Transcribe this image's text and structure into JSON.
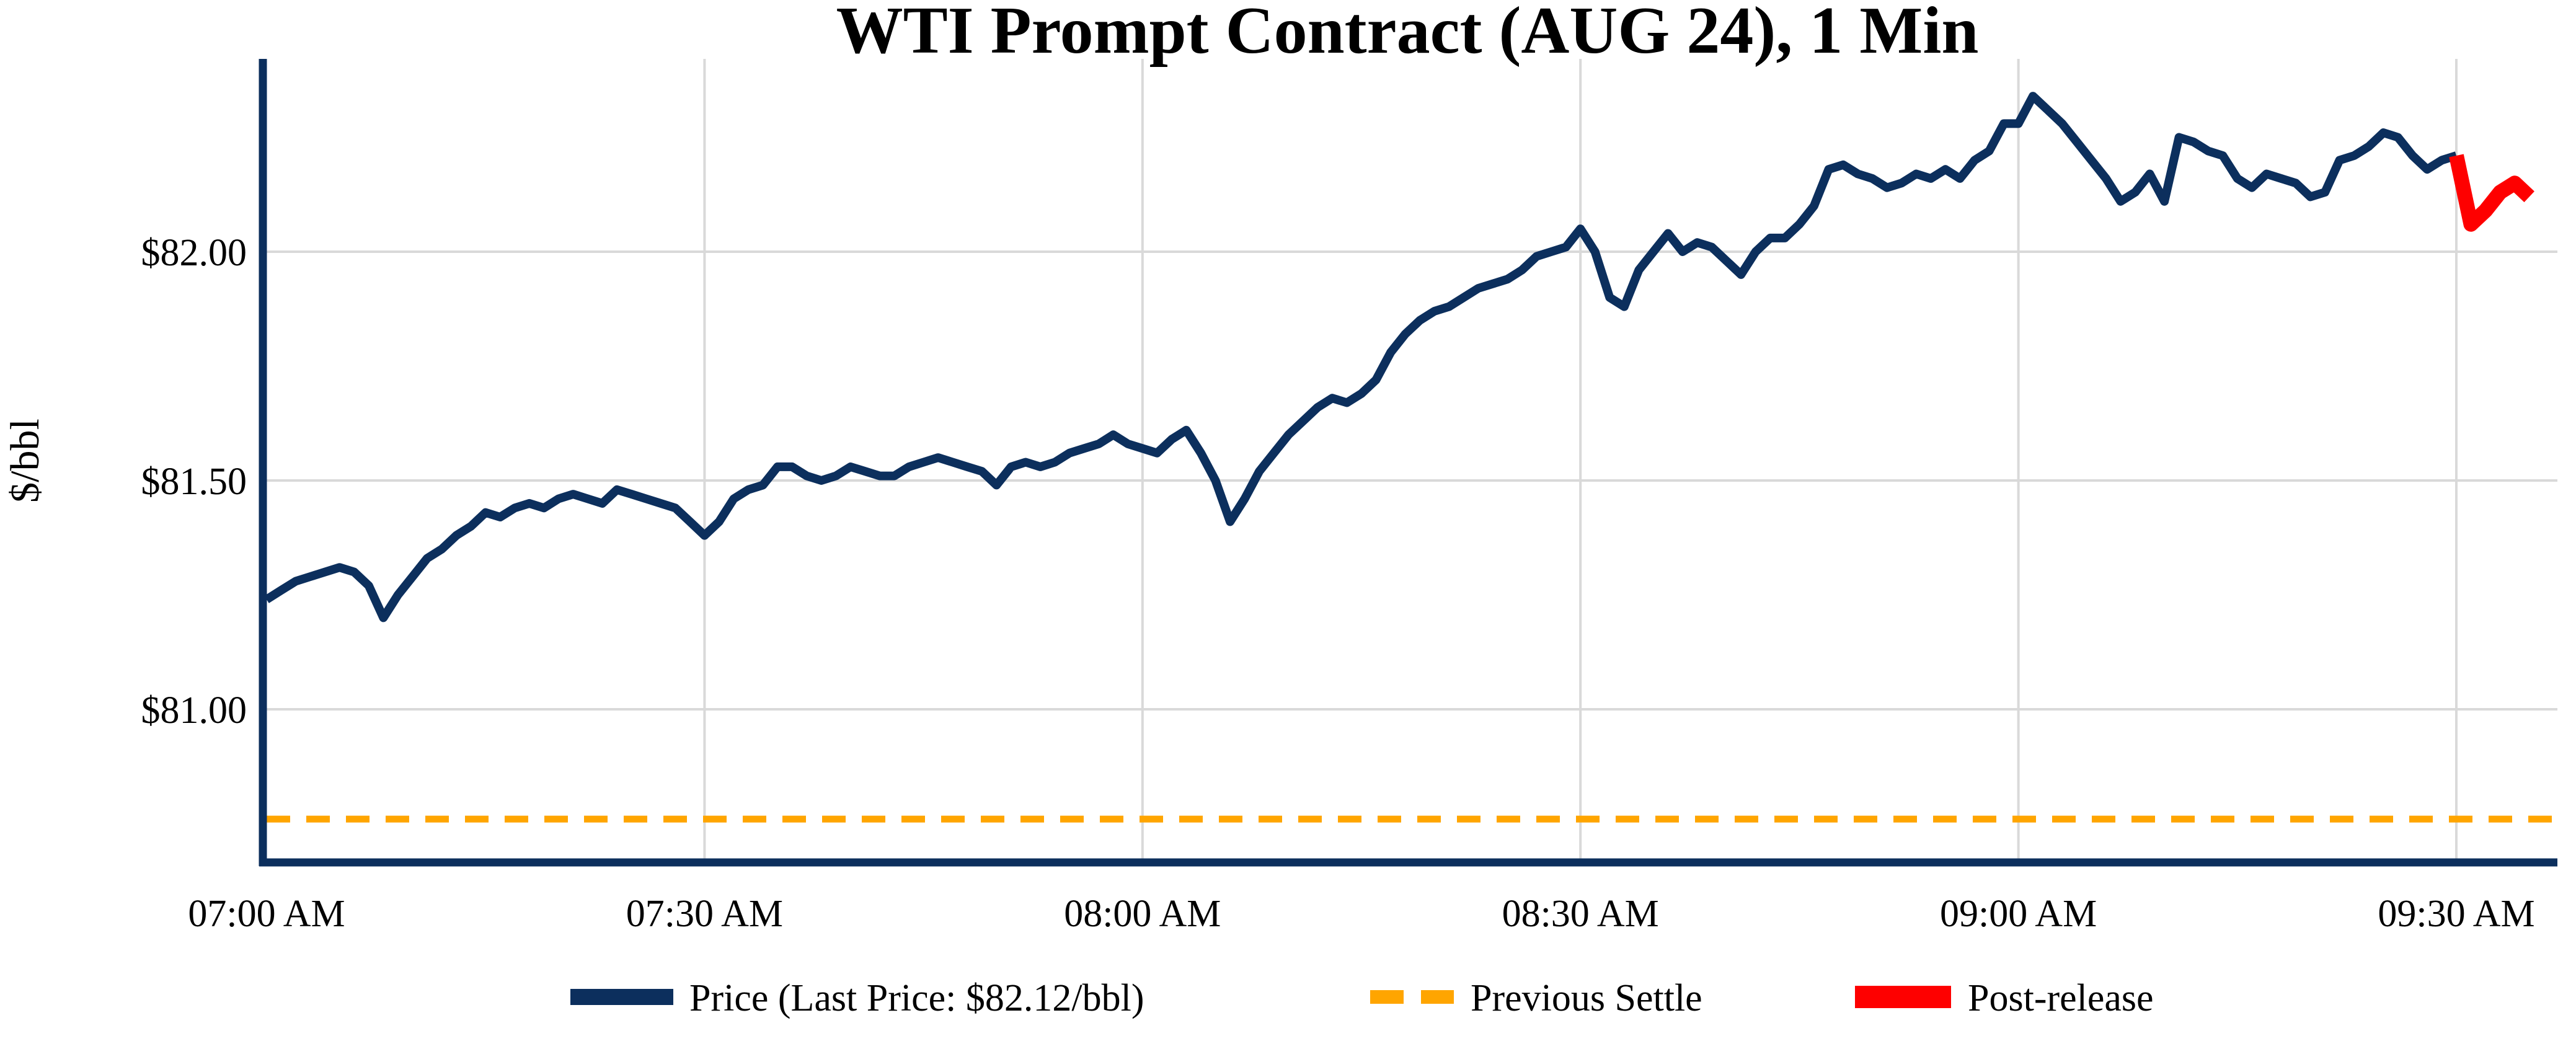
{
  "chart_data": {
    "type": "line",
    "title": "WTI Prompt Contract (AUG 24), 1 Min",
    "ylabel": "$/bbl",
    "xlabel": "",
    "grid": true,
    "legend_position": "bottom",
    "x_axis": {
      "tick_labels": [
        "07:00 AM",
        "07:30 AM",
        "08:00 AM",
        "08:30 AM",
        "09:00 AM",
        "09:30 AM"
      ],
      "tick_minutes": [
        0,
        30,
        60,
        90,
        120,
        150
      ],
      "start_label": "07:00 AM",
      "end_minute": 155
    },
    "y_axis": {
      "tick_labels": [
        "$82.00",
        "$81.50",
        "$81.00"
      ],
      "tick_values": [
        82.0,
        81.5,
        81.0
      ],
      "ylim": [
        80.67,
        82.42
      ]
    },
    "last_price_label": "$82.12/bbl",
    "previous_settle_value": 80.76,
    "series": [
      {
        "name": "Price (Last Price: $82.12/bbl)",
        "kind": "line",
        "style": "solid",
        "color": "#0c2f5d",
        "start_minute": 0,
        "interval_minutes": 1,
        "values": [
          81.24,
          81.26,
          81.28,
          81.29,
          81.3,
          81.31,
          81.3,
          81.27,
          81.2,
          81.25,
          81.29,
          81.33,
          81.35,
          81.38,
          81.4,
          81.43,
          81.42,
          81.44,
          81.45,
          81.44,
          81.46,
          81.47,
          81.46,
          81.45,
          81.48,
          81.47,
          81.46,
          81.45,
          81.44,
          81.41,
          81.38,
          81.41,
          81.46,
          81.48,
          81.49,
          81.53,
          81.53,
          81.51,
          81.5,
          81.51,
          81.53,
          81.52,
          81.51,
          81.51,
          81.53,
          81.54,
          81.55,
          81.54,
          81.53,
          81.52,
          81.49,
          81.53,
          81.54,
          81.53,
          81.54,
          81.56,
          81.57,
          81.58,
          81.6,
          81.58,
          81.57,
          81.56,
          81.59,
          81.61,
          81.56,
          81.5,
          81.41,
          81.46,
          81.52,
          81.56,
          81.6,
          81.63,
          81.66,
          81.68,
          81.67,
          81.69,
          81.72,
          81.78,
          81.82,
          81.85,
          81.87,
          81.88,
          81.9,
          81.92,
          81.93,
          81.94,
          81.96,
          81.99,
          82.0,
          82.01,
          82.05,
          82.0,
          81.9,
          81.88,
          81.96,
          82.0,
          82.04,
          82.0,
          82.02,
          82.01,
          81.98,
          81.95,
          82.0,
          82.03,
          82.03,
          82.06,
          82.1,
          82.18,
          82.19,
          82.17,
          82.16,
          82.14,
          82.15,
          82.17,
          82.16,
          82.18,
          82.16,
          82.2,
          82.22,
          82.28,
          82.28,
          82.34,
          82.31,
          82.28,
          82.24,
          82.2,
          82.16,
          82.11,
          82.13,
          82.17,
          82.11,
          82.25,
          82.24,
          82.22,
          82.21,
          82.16,
          82.14,
          82.17,
          82.16,
          82.15,
          82.12,
          82.13,
          82.2,
          82.21,
          82.23,
          82.26,
          82.25,
          82.21,
          82.18,
          82.2,
          82.21
        ]
      },
      {
        "name": "Previous Settle",
        "kind": "hline",
        "style": "dashed",
        "color": "#ffa500",
        "value": 80.76
      },
      {
        "name": "Post-release",
        "kind": "line",
        "style": "solid",
        "color": "#fe0000",
        "start_minute": 150,
        "interval_minutes": 1,
        "values": [
          82.21,
          82.06,
          82.09,
          82.13,
          82.15,
          82.12
        ]
      }
    ],
    "colors": {
      "price_line": "#0c2f5d",
      "previous_settle": "#ffa500",
      "post_release": "#fe0000",
      "gridline": "#d9d9d9",
      "axis_spine": "#0c2f5d",
      "background": "#ffffff",
      "text": "#000000"
    }
  }
}
